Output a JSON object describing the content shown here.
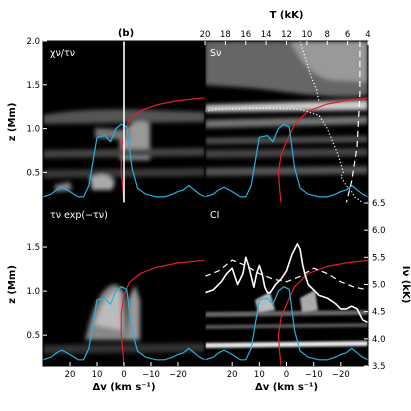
{
  "figure_label": "(b)",
  "chart_data": [
    {
      "type": "heatmap",
      "panel_label": "χν/τν",
      "xlim": [
        30,
        -30
      ],
      "ylim": [
        0.15,
        2.0
      ],
      "xticks": [],
      "yticks": [
        "2.0",
        "1.5",
        "1.0",
        "0.5"
      ],
      "ylabel": "z (Mm)",
      "figure_label": "(b)",
      "series": [
        {
          "name": "",
          "color": "#e0202a",
          "x": [
            0,
            0.5,
            1,
            1,
            0,
            -2,
            -6,
            -12,
            -20,
            -30
          ],
          "y": [
            0.15,
            0.35,
            0.5,
            0.75,
            0.95,
            1.1,
            1.2,
            1.27,
            1.32,
            1.35
          ]
        },
        {
          "name": "",
          "color": "#2ab0e0",
          "x": [
            30,
            27,
            25,
            23,
            20,
            17,
            15,
            13,
            10,
            7,
            5,
            3,
            1,
            -1,
            -3,
            -5,
            -8,
            -12,
            -15,
            -18,
            -20,
            -22,
            -24,
            -26,
            -28,
            -30
          ],
          "y": [
            0.22,
            0.25,
            0.3,
            0.33,
            0.28,
            0.22,
            0.22,
            0.35,
            0.9,
            0.92,
            0.85,
            1.0,
            1.05,
            1.02,
            0.55,
            0.32,
            0.25,
            0.22,
            0.22,
            0.25,
            0.28,
            0.3,
            0.35,
            0.3,
            0.25,
            0.22
          ]
        },
        {
          "name": "",
          "color": "#ffffff",
          "x": [
            0,
            0
          ],
          "y": [
            0.15,
            2.0
          ]
        }
      ]
    },
    {
      "type": "heatmap",
      "panel_label": "Sν",
      "xlim": [
        30,
        -30
      ],
      "ylim": [
        0.15,
        2.0
      ],
      "x2label": "T (kK)",
      "x2lim": [
        20,
        4
      ],
      "x2ticks": [
        "20",
        "18",
        "16",
        "14",
        "12",
        "10",
        "8",
        "6",
        "4"
      ],
      "series": [
        {
          "name": "",
          "color": "#e0202a",
          "x": [
            2,
            2.5,
            3,
            2,
            0,
            -3,
            -8,
            -15,
            -22,
            -30
          ],
          "y": [
            0.15,
            0.3,
            0.5,
            0.7,
            0.85,
            1.05,
            1.2,
            1.28,
            1.32,
            1.35
          ]
        },
        {
          "name": "",
          "color": "#2ab0e0",
          "x": [
            30,
            27,
            25,
            23,
            20,
            17,
            15,
            13,
            10,
            7,
            5,
            3,
            1,
            -1,
            -3,
            -5,
            -8,
            -12,
            -15,
            -18,
            -20,
            -22,
            -24,
            -26,
            -28,
            -30
          ],
          "y": [
            0.22,
            0.25,
            0.3,
            0.33,
            0.28,
            0.22,
            0.22,
            0.35,
            0.9,
            0.92,
            0.85,
            1.0,
            1.05,
            1.02,
            0.55,
            0.32,
            0.25,
            0.22,
            0.22,
            0.25,
            0.28,
            0.3,
            0.35,
            0.3,
            0.25,
            0.22
          ]
        },
        {
          "name": "",
          "color": "#ffffff",
          "style": "dotted",
          "x": [
            30,
            25,
            15,
            5,
            -5,
            -12,
            -15,
            -17,
            -19,
            -20,
            -21,
            -20,
            -22,
            -24,
            -25,
            -27,
            -28
          ],
          "y": [
            1.2,
            1.22,
            1.23,
            1.23,
            1.22,
            1.15,
            1.0,
            0.85,
            0.7,
            0.6,
            0.5,
            0.45,
            0.35,
            0.28,
            0.22,
            0.18,
            0.15
          ]
        },
        {
          "name": "",
          "color": "#ffffff",
          "style": "dotted",
          "x": [
            -5,
            -7,
            -9,
            -11,
            -12
          ],
          "y": [
            2.0,
            1.8,
            1.6,
            1.45,
            1.3
          ]
        },
        {
          "name": "",
          "color": "#ffffff",
          "style": "dashed",
          "x": [
            -27,
            -27,
            -27,
            -26,
            -24,
            -22
          ],
          "y": [
            2.0,
            1.7,
            1.4,
            0.8,
            0.4,
            0.15
          ]
        }
      ]
    },
    {
      "type": "heatmap",
      "panel_label": "τν exp(−τν)",
      "xlim": [
        30,
        -30
      ],
      "ylim": [
        0.15,
        2.0
      ],
      "xticks": [
        "20",
        "10",
        "0",
        "−10",
        "−20"
      ],
      "yticks": [
        "1.5",
        "1.0",
        "0.5"
      ],
      "xlabel": "Δv (km s⁻¹)",
      "ylabel": "z (Mm)",
      "series": [
        {
          "name": "",
          "color": "#e0202a",
          "x": [
            0,
            0.5,
            1,
            1,
            0,
            -2,
            -6,
            -12,
            -20,
            -30
          ],
          "y": [
            0.15,
            0.35,
            0.5,
            0.75,
            0.95,
            1.1,
            1.2,
            1.27,
            1.32,
            1.35
          ]
        },
        {
          "name": "",
          "color": "#2ab0e0",
          "x": [
            30,
            27,
            25,
            23,
            20,
            17,
            15,
            13,
            10,
            7,
            5,
            3,
            1,
            -1,
            -3,
            -5,
            -8,
            -12,
            -15,
            -18,
            -20,
            -22,
            -24,
            -26,
            -28,
            -30
          ],
          "y": [
            0.22,
            0.25,
            0.3,
            0.33,
            0.28,
            0.22,
            0.22,
            0.35,
            0.9,
            0.92,
            0.85,
            1.0,
            1.05,
            1.02,
            0.55,
            0.32,
            0.25,
            0.22,
            0.22,
            0.25,
            0.28,
            0.3,
            0.35,
            0.3,
            0.25,
            0.22
          ]
        }
      ]
    },
    {
      "type": "heatmap",
      "panel_label": "CI",
      "xlim": [
        30,
        -30
      ],
      "ylim": [
        0.15,
        2.0
      ],
      "xticks": [
        "20",
        "10",
        "0",
        "−10",
        "−20"
      ],
      "xlabel": "Δv (km s⁻¹)",
      "y2label": "Iν (kK)",
      "y2lim": [
        3.5,
        6.5
      ],
      "y2ticks": [
        "6.5",
        "6.0",
        "5.5",
        "5.0",
        "4.5",
        "4.0",
        "3.5"
      ],
      "series": [
        {
          "name": "",
          "color": "#e0202a",
          "x": [
            2,
            2.5,
            3,
            2,
            0,
            -3,
            -8,
            -15,
            -22,
            -30
          ],
          "y": [
            0.15,
            0.3,
            0.5,
            0.7,
            0.85,
            1.05,
            1.2,
            1.28,
            1.32,
            1.35
          ]
        },
        {
          "name": "",
          "color": "#2ab0e0",
          "x": [
            30,
            27,
            25,
            23,
            20,
            17,
            15,
            13,
            10,
            7,
            5,
            3,
            1,
            -1,
            -3,
            -5,
            -8,
            -12,
            -15,
            -18,
            -20,
            -22,
            -24,
            -26,
            -28,
            -30
          ],
          "y": [
            0.22,
            0.25,
            0.3,
            0.33,
            0.28,
            0.22,
            0.22,
            0.35,
            0.9,
            0.92,
            0.85,
            1.0,
            1.05,
            1.02,
            0.55,
            0.32,
            0.25,
            0.22,
            0.22,
            0.25,
            0.28,
            0.3,
            0.35,
            0.3,
            0.25,
            0.22
          ]
        },
        {
          "name": "",
          "color": "#ffffff",
          "axis": "right",
          "x": [
            30,
            27,
            24,
            22,
            20,
            18,
            16,
            15,
            14,
            12,
            11,
            10,
            9,
            8,
            7,
            6,
            4,
            2,
            0,
            -2,
            -4,
            -5,
            -6,
            -7,
            -8,
            -10,
            -12,
            -15,
            -18,
            -20,
            -22,
            -24,
            -26,
            -28,
            -30
          ],
          "y": [
            4.85,
            4.9,
            5.05,
            5.2,
            5.3,
            5.0,
            5.2,
            5.5,
            5.35,
            4.95,
            5.2,
            5.35,
            5.2,
            4.95,
            4.85,
            4.85,
            5.0,
            5.1,
            5.25,
            5.55,
            5.75,
            5.65,
            5.35,
            5.15,
            5.0,
            4.9,
            4.8,
            4.75,
            4.65,
            4.55,
            4.55,
            4.6,
            4.55,
            4.35,
            4.3
          ]
        },
        {
          "name": "",
          "color": "#ffffff",
          "axis": "right",
          "style": "dashed",
          "x": [
            30,
            25,
            20,
            15,
            10,
            5,
            0,
            -5,
            -10,
            -15,
            -20,
            -25,
            -30
          ],
          "y": [
            5.15,
            5.25,
            5.45,
            5.35,
            5.2,
            5.1,
            5.05,
            5.15,
            5.3,
            5.2,
            5.05,
            4.95,
            4.9
          ]
        }
      ]
    }
  ]
}
